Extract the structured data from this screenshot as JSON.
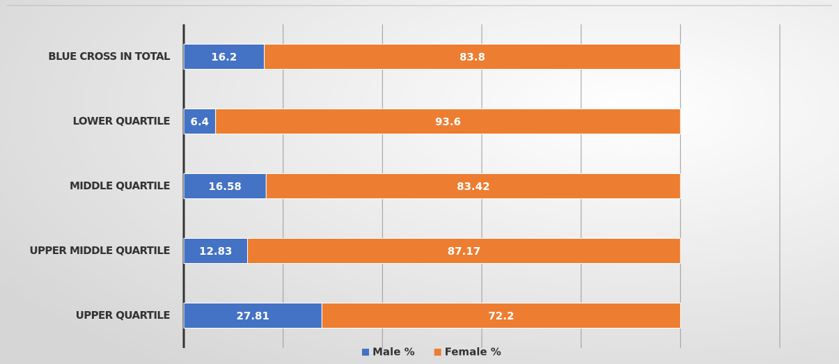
{
  "chart_data": {
    "type": "stacked-bar-horizontal",
    "categories": [
      "BLUE CROSS IN TOTAL",
      "LOWER QUARTILE",
      "MIDDLE QUARTILE",
      "UPPER MIDDLE QUARTILE",
      "UPPER QUARTILE"
    ],
    "series": [
      {
        "name": "Male %",
        "color": "#4472c4",
        "values": [
          16.2,
          6.4,
          16.58,
          12.83,
          27.81
        ]
      },
      {
        "name": "Female %",
        "color": "#ed7d31",
        "values": [
          83.8,
          93.6,
          83.42,
          87.17,
          72.2
        ]
      }
    ],
    "xlim": [
      0,
      120
    ],
    "xticks": [
      0,
      20,
      40,
      60,
      80,
      100,
      120
    ],
    "grid": true,
    "legend": "bottom"
  }
}
